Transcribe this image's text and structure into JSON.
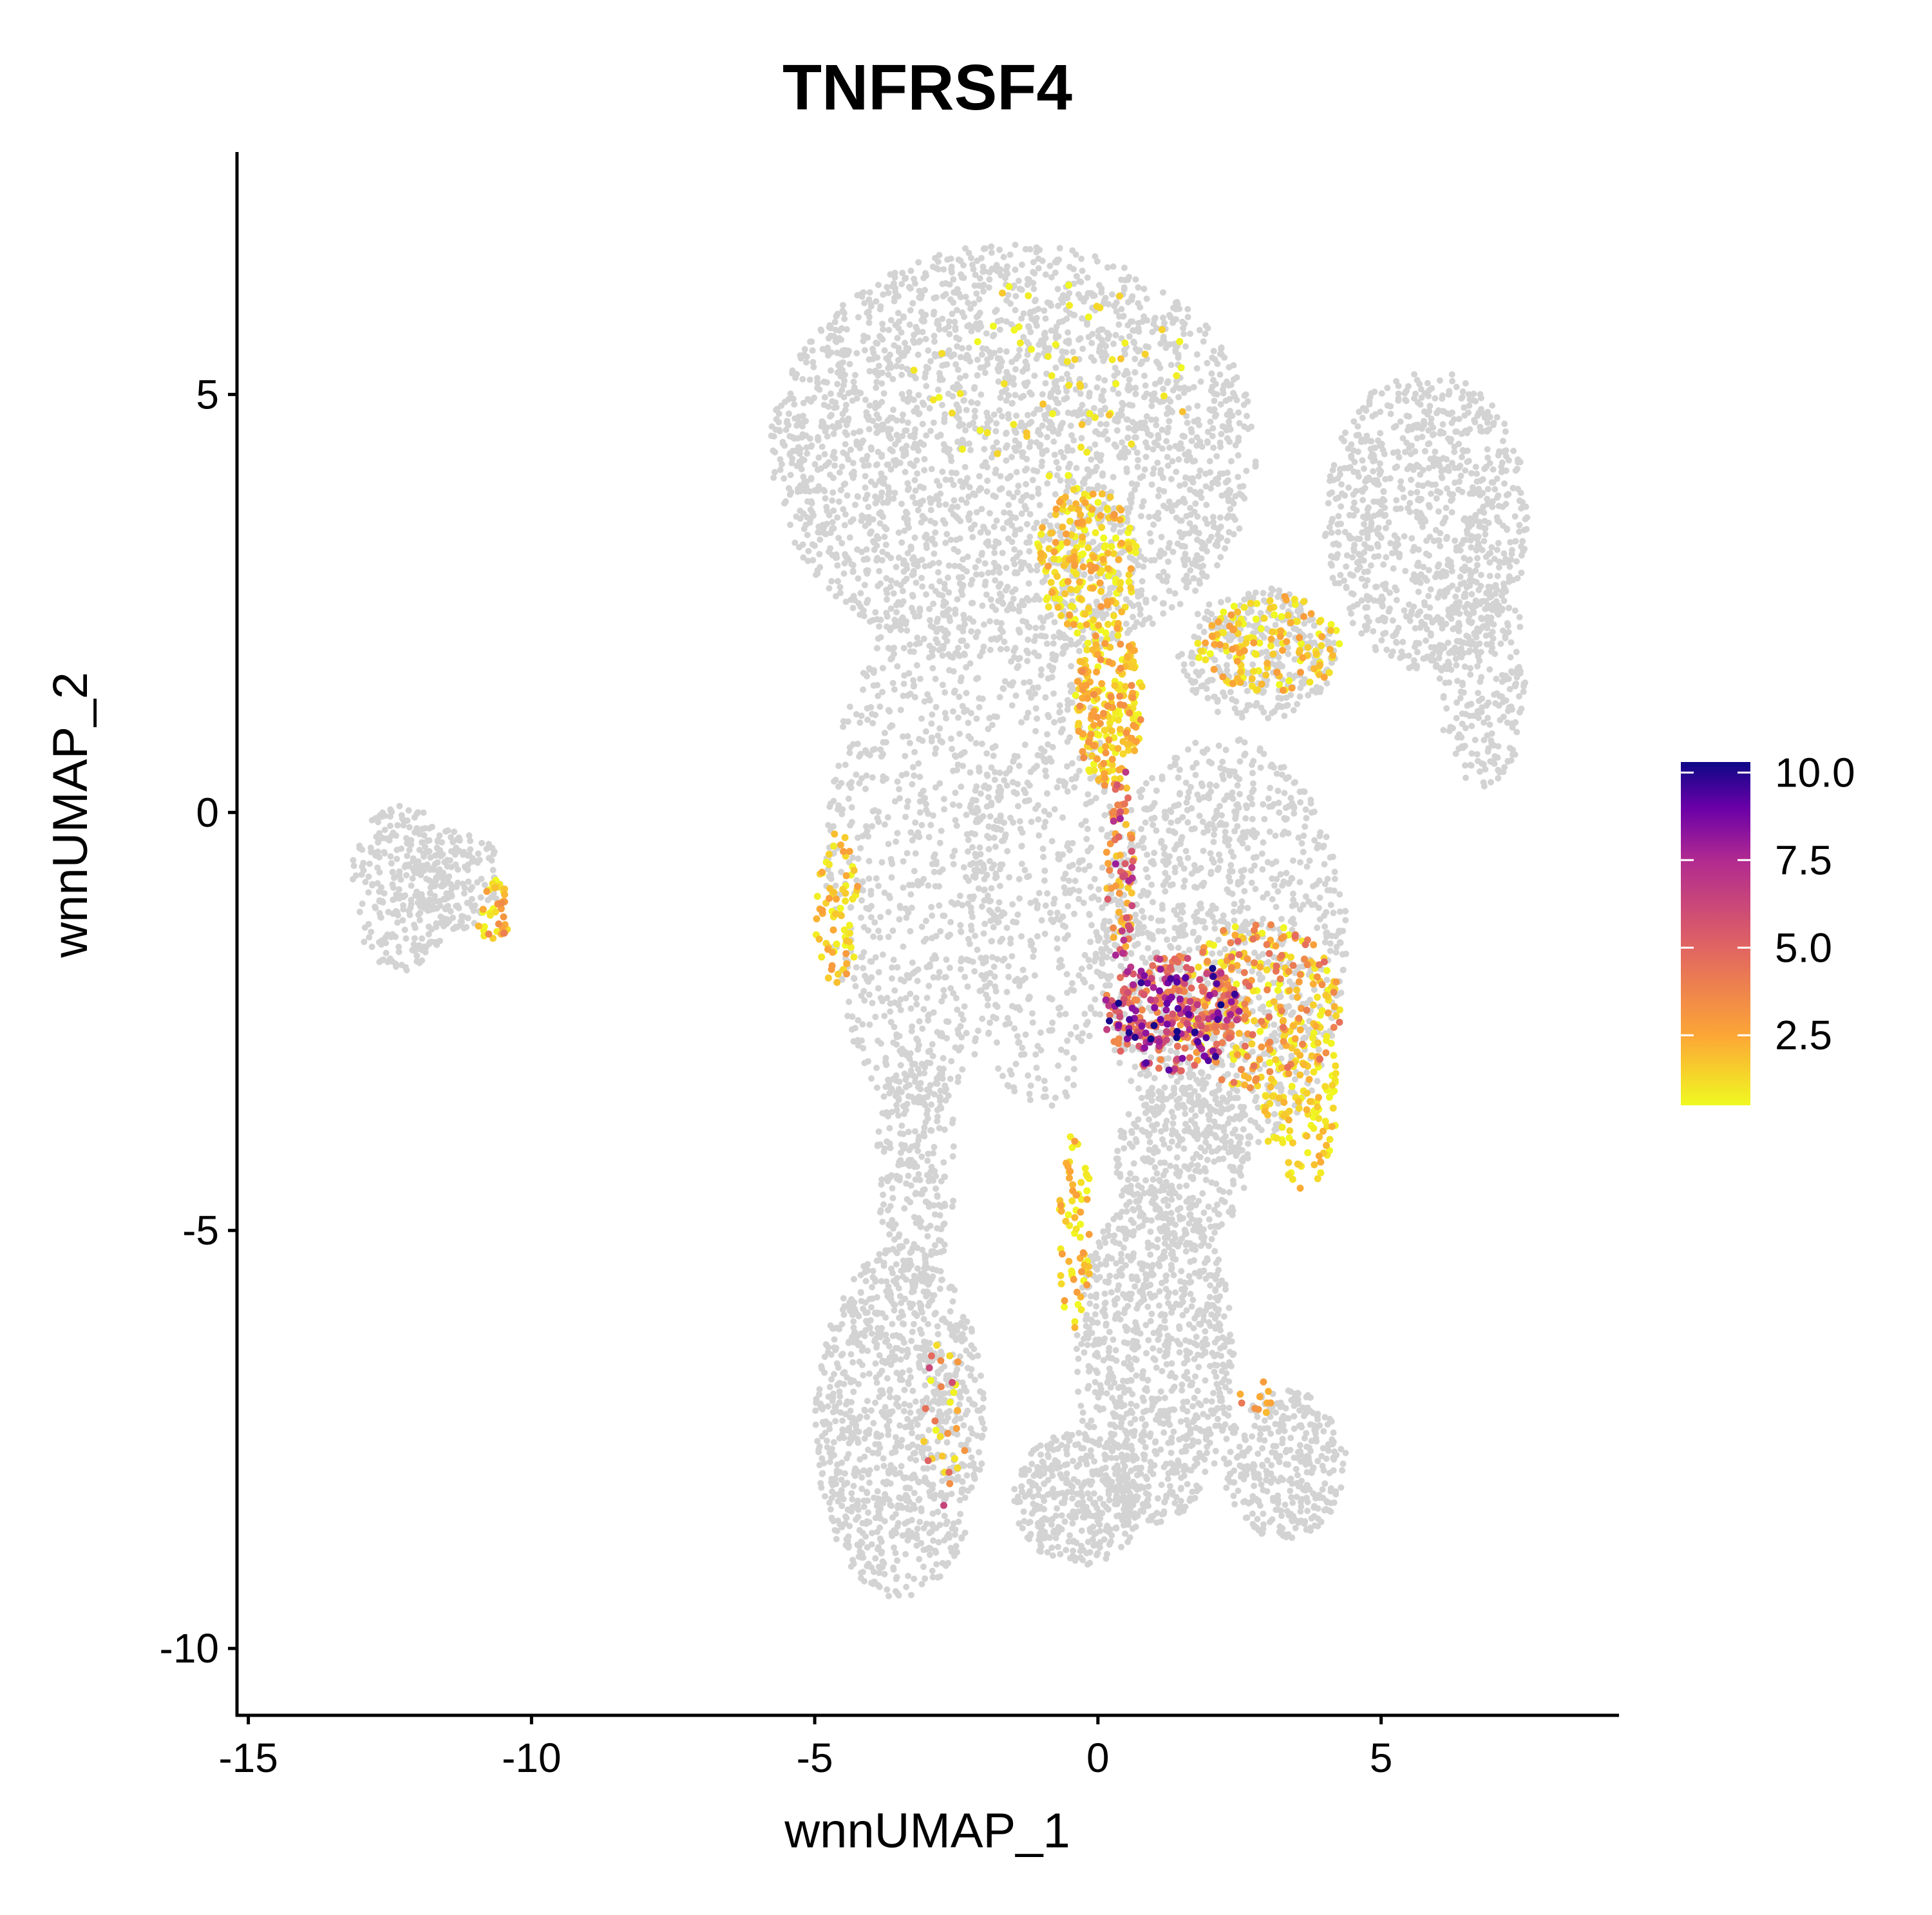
{
  "chart_data": {
    "type": "scatter",
    "title": "TNFRSF4",
    "xlabel": "wnnUMAP_1",
    "ylabel": "wnnUMAP_2",
    "xlim": [
      -15.2,
      9.2
    ],
    "ylim": [
      -10.8,
      7.9
    ],
    "x_ticks": [
      {
        "value": -15,
        "label": "-15"
      },
      {
        "value": -10,
        "label": "-10"
      },
      {
        "value": -5,
        "label": "-5"
      },
      {
        "value": 0,
        "label": "0"
      },
      {
        "value": 5,
        "label": "5"
      }
    ],
    "y_ticks": [
      {
        "value": -10,
        "label": "-10"
      },
      {
        "value": -5,
        "label": "-5"
      },
      {
        "value": 0,
        "label": "0"
      },
      {
        "value": 5,
        "label": "5"
      }
    ],
    "grid": false,
    "legend_placement": "right",
    "color_scale": {
      "name": "plasma",
      "min": 0.5,
      "max": 10.3,
      "stops": [
        {
          "value": 0.5,
          "color": "#f0f921"
        },
        {
          "value": 2.5,
          "color": "#fca636"
        },
        {
          "value": 5.0,
          "color": "#e16462"
        },
        {
          "value": 7.5,
          "color": "#b12a90"
        },
        {
          "value": 9.0,
          "color": "#6a00a8"
        },
        {
          "value": 10.3,
          "color": "#0d0887"
        }
      ],
      "ticks": [
        {
          "value": 10.0,
          "label": "10.0"
        },
        {
          "value": 7.5,
          "label": "7.5"
        },
        {
          "value": 5.0,
          "label": "5.0"
        },
        {
          "value": 2.5,
          "label": "2.5"
        }
      ]
    },
    "background_color": "#d3d3d3",
    "background_clusters": [
      {
        "cx": -12.3,
        "cy": -0.9,
        "rx": 0.9,
        "ry": 1.0,
        "n": 260
      },
      {
        "cx": -11.3,
        "cy": -0.8,
        "rx": 0.8,
        "ry": 0.6,
        "n": 160
      },
      {
        "cx": -1.5,
        "cy": 4.3,
        "rx": 4.3,
        "ry": 2.5,
        "n": 2600
      },
      {
        "cx": 5.8,
        "cy": 3.5,
        "rx": 1.8,
        "ry": 1.8,
        "n": 900
      },
      {
        "cx": 6.8,
        "cy": 1.6,
        "rx": 0.8,
        "ry": 1.3,
        "n": 250
      },
      {
        "cx": 2.8,
        "cy": 1.9,
        "rx": 1.4,
        "ry": 0.8,
        "n": 300
      },
      {
        "cx": -3.2,
        "cy": -0.6,
        "rx": 1.6,
        "ry": 3.0,
        "n": 700
      },
      {
        "cx": -1.0,
        "cy": -0.8,
        "rx": 1.3,
        "ry": 2.8,
        "n": 500
      },
      {
        "cx": 2.2,
        "cy": -1.6,
        "rx": 2.2,
        "ry": 2.5,
        "n": 1200
      },
      {
        "cx": 1.5,
        "cy": -4.2,
        "rx": 1.2,
        "ry": 1.0,
        "n": 300
      },
      {
        "cx": -3.5,
        "cy": -7.3,
        "rx": 1.5,
        "ry": 2.1,
        "n": 1000
      },
      {
        "cx": -3.2,
        "cy": -4.2,
        "rx": 0.7,
        "ry": 1.5,
        "n": 250
      },
      {
        "cx": 1.0,
        "cy": -6.5,
        "rx": 1.4,
        "ry": 2.0,
        "n": 900
      },
      {
        "cx": -0.3,
        "cy": -8.2,
        "rx": 1.2,
        "ry": 0.8,
        "n": 400
      },
      {
        "cx": 3.3,
        "cy": -7.8,
        "rx": 1.1,
        "ry": 0.9,
        "n": 350
      }
    ],
    "expression_clusters": [
      {
        "cx": -0.2,
        "cy": 3.0,
        "rx": 0.9,
        "ry": 0.9,
        "n": 220,
        "vmin": 0.5,
        "vmax": 3.0
      },
      {
        "cx": 0.2,
        "cy": 1.3,
        "rx": 0.6,
        "ry": 1.0,
        "n": 240,
        "vmin": 0.5,
        "vmax": 3.5
      },
      {
        "cx": 3.0,
        "cy": 2.0,
        "rx": 1.3,
        "ry": 0.6,
        "n": 150,
        "vmin": 0.5,
        "vmax": 3.0
      },
      {
        "cx": 0.4,
        "cy": -0.6,
        "rx": 0.25,
        "ry": 1.2,
        "n": 80,
        "vmin": 1.5,
        "vmax": 8.0
      },
      {
        "cx": 1.3,
        "cy": -2.4,
        "rx": 1.2,
        "ry": 0.7,
        "n": 320,
        "vmin": 3.5,
        "vmax": 10.3
      },
      {
        "cx": 2.8,
        "cy": -2.3,
        "rx": 1.5,
        "ry": 1.0,
        "n": 300,
        "vmin": 0.5,
        "vmax": 5.0
      },
      {
        "cx": 3.6,
        "cy": -3.5,
        "rx": 0.7,
        "ry": 1.0,
        "n": 120,
        "vmin": 0.5,
        "vmax": 2.5
      },
      {
        "cx": -0.4,
        "cy": -5.0,
        "rx": 0.3,
        "ry": 1.2,
        "n": 70,
        "vmin": 0.5,
        "vmax": 3.0
      },
      {
        "cx": -4.6,
        "cy": -1.2,
        "rx": 0.4,
        "ry": 1.0,
        "n": 70,
        "vmin": 0.5,
        "vmax": 3.0
      },
      {
        "cx": -10.7,
        "cy": -1.2,
        "rx": 0.35,
        "ry": 0.4,
        "n": 40,
        "vmin": 0.5,
        "vmax": 4.0
      },
      {
        "cx": -2.7,
        "cy": -7.3,
        "rx": 0.4,
        "ry": 1.0,
        "n": 30,
        "vmin": 0.5,
        "vmax": 7.0
      },
      {
        "cx": 2.8,
        "cy": -7.0,
        "rx": 0.3,
        "ry": 0.3,
        "n": 10,
        "vmin": 2.0,
        "vmax": 5.0
      },
      {
        "cx": -0.8,
        "cy": 5.2,
        "rx": 2.5,
        "ry": 1.2,
        "n": 60,
        "vmin": 0.5,
        "vmax": 2.0
      }
    ]
  }
}
